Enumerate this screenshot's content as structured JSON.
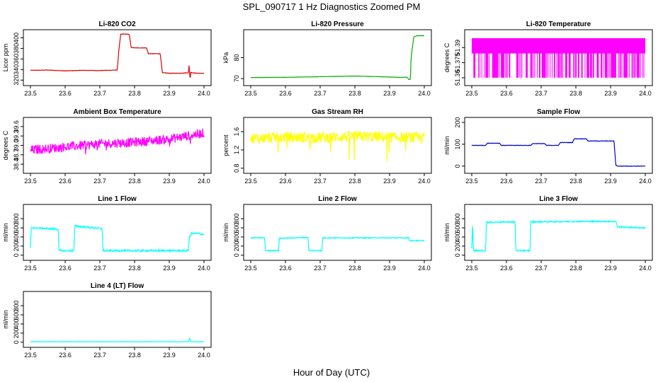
{
  "figure": {
    "title": "SPL_090717  1 Hz Diagnostics Zoomed PM",
    "xlabel": "Hour of Day (UTC)"
  },
  "chart_data": [
    {
      "type": "line",
      "title": "Li-820 CO2",
      "ylabel": "Licor ppm",
      "color": "#dd0000",
      "xlim": [
        23.5,
        24.0
      ],
      "ylim": [
        315,
        410
      ],
      "xticks": [
        "23.5",
        "23.6",
        "23.7",
        "23.8",
        "23.9",
        "24.0"
      ],
      "yticks": [
        {
          "v": 320,
          "label": "320"
        },
        {
          "v": 340,
          "label": "340"
        },
        {
          "v": 360,
          "label": "360"
        },
        {
          "v": 380,
          "label": "380"
        },
        {
          "v": 400,
          "label": "400"
        }
      ],
      "x": [
        23.5,
        23.55,
        23.6,
        23.65,
        23.7,
        23.745,
        23.75,
        23.754,
        23.76,
        23.78,
        23.785,
        23.79,
        23.8,
        23.82,
        23.834,
        23.84,
        23.86,
        23.874,
        23.88,
        23.9,
        23.93,
        23.955,
        23.957,
        23.96,
        23.962,
        23.965,
        23.98,
        24.0
      ],
      "values": [
        338.5,
        339,
        337.5,
        338.5,
        338,
        339,
        339,
        372,
        407,
        407,
        406,
        382,
        381,
        381,
        381,
        370,
        370,
        370,
        334,
        333,
        333,
        334,
        348,
        321,
        336,
        334,
        333,
        333
      ],
      "noise": 0.4
    },
    {
      "type": "line",
      "title": "Li-820 Pressure",
      "ylabel": "kPa",
      "color": "#00aa00",
      "xlim": [
        23.5,
        24.0
      ],
      "ylim": [
        68,
        92
      ],
      "xticks": [
        "23.5",
        "23.6",
        "23.7",
        "23.8",
        "23.9",
        "24.0"
      ],
      "yticks": [
        {
          "v": 70,
          "label": "70"
        },
        {
          "v": 80,
          "label": "80"
        }
      ],
      "x": [
        23.5,
        23.6,
        23.7,
        23.8,
        23.85,
        23.93,
        23.95,
        23.955,
        23.96,
        23.962,
        23.965,
        23.97,
        23.98,
        24.0
      ],
      "values": [
        70.5,
        70.6,
        70.9,
        71.2,
        71.0,
        70.6,
        70.7,
        69.6,
        69.6,
        80,
        84,
        90,
        90.5,
        90.5
      ],
      "noise": 0.05
    },
    {
      "type": "line",
      "title": "Li-820 Temperature",
      "ylabel": "degrees C",
      "color": "#ff00ff",
      "xlim": [
        23.5,
        24.0
      ],
      "ylim": [
        51.355,
        51.405
      ],
      "xticks": [
        "23.5",
        "23.6",
        "23.7",
        "23.8",
        "23.9",
        "24.0"
      ],
      "yticks": [
        {
          "v": 51.36,
          "label": "51.36"
        },
        {
          "v": 51.375,
          "label": "51.375"
        },
        {
          "v": 51.39,
          "label": "51.39"
        }
      ],
      "levels": [
        51.36,
        51.399
      ],
      "x": [
        23.5,
        24.0
      ],
      "values": [
        51.36,
        51.399
      ]
    },
    {
      "type": "line",
      "title": "Ambient Box Temperature",
      "ylabel": "degrees C",
      "color": "#ff00ff",
      "xlim": [
        23.5,
        24.0
      ],
      "ylim": [
        38.2,
        39.8
      ],
      "xticks": [
        "23.5",
        "23.6",
        "23.7",
        "23.8",
        "23.9",
        "24.0"
      ],
      "yticks": [
        {
          "v": 38.4,
          "label": "38.4"
        },
        {
          "v": 38.7,
          "label": "38.7"
        },
        {
          "v": 39.0,
          "label": "39.0"
        },
        {
          "v": 39.3,
          "label": "39.3"
        },
        {
          "v": 39.6,
          "label": "39.6"
        }
      ],
      "x": [
        23.5,
        23.6,
        23.7,
        23.8,
        23.9,
        23.95,
        24.0
      ],
      "values": [
        38.85,
        38.95,
        39.05,
        39.1,
        39.2,
        39.3,
        39.4
      ],
      "noise": 0.15
    },
    {
      "type": "line",
      "title": "Gas Stream RH",
      "ylabel": "percent",
      "color": "#ffff00",
      "xlim": [
        23.5,
        24.0
      ],
      "ylim": [
        0.75,
        1.85
      ],
      "xticks": [
        "23.5",
        "23.6",
        "23.7",
        "23.8",
        "23.9",
        "24.0"
      ],
      "yticks": [
        {
          "v": 0.8,
          "label": "0.8"
        },
        {
          "v": 1.2,
          "label": "1.2"
        },
        {
          "v": 1.6,
          "label": "1.6"
        }
      ],
      "x": [
        23.5,
        23.6,
        23.7,
        23.8,
        23.9,
        24.0
      ],
      "values": [
        1.45,
        1.48,
        1.47,
        1.5,
        1.48,
        1.47
      ],
      "noise": 0.12
    },
    {
      "type": "line",
      "title": "Sample Flow",
      "ylabel": "ml/min",
      "color": "#0000cc",
      "xlim": [
        23.5,
        24.0
      ],
      "ylim": [
        -20,
        210
      ],
      "xticks": [
        "23.5",
        "23.6",
        "23.7",
        "23.8",
        "23.9",
        "24.0"
      ],
      "yticks": [
        {
          "v": 0,
          "label": "0"
        },
        {
          "v": 100,
          "label": "100"
        },
        {
          "v": 200,
          "label": "200"
        }
      ],
      "x": [
        23.5,
        23.54,
        23.545,
        23.58,
        23.585,
        23.67,
        23.675,
        23.71,
        23.715,
        23.75,
        23.755,
        23.79,
        23.795,
        23.83,
        23.835,
        23.91,
        23.915,
        23.92,
        24.0
      ],
      "values": [
        95,
        95,
        105,
        105,
        95,
        95,
        103,
        103,
        95,
        95,
        108,
        108,
        125,
        125,
        115,
        115,
        5,
        0,
        0
      ],
      "noise": 1
    },
    {
      "type": "line",
      "title": "Line 1 Flow",
      "ylabel": "ml/min",
      "color": "#00ffff",
      "xlim": [
        23.5,
        24.0
      ],
      "ylim": [
        -50,
        1050
      ],
      "xticks": [
        "23.5",
        "23.6",
        "23.7",
        "23.8",
        "23.9",
        "24.0"
      ],
      "yticks": [
        {
          "v": 0,
          "label": "0"
        },
        {
          "v": 200,
          "label": "200"
        },
        {
          "v": 400,
          "label": "400"
        },
        {
          "v": 600,
          "label": "600"
        },
        {
          "v": 800,
          "label": "800"
        }
      ],
      "x": [
        23.5,
        23.502,
        23.505,
        23.58,
        23.582,
        23.625,
        23.628,
        23.707,
        23.709,
        23.955,
        23.958,
        23.965,
        24.0
      ],
      "values": [
        150,
        620,
        600,
        570,
        100,
        100,
        640,
        580,
        100,
        100,
        400,
        480,
        460
      ],
      "noise": 20
    },
    {
      "type": "line",
      "title": "Line 2 Flow",
      "ylabel": "ml/min",
      "color": "#00ffff",
      "xlim": [
        23.5,
        24.0
      ],
      "ylim": [
        -50,
        1050
      ],
      "xticks": [
        "23.5",
        "23.6",
        "23.7",
        "23.8",
        "23.9",
        "24.0"
      ],
      "yticks": [
        {
          "v": 0,
          "label": "0"
        },
        {
          "v": 200,
          "label": "200"
        },
        {
          "v": 400,
          "label": "400"
        },
        {
          "v": 600,
          "label": "600"
        },
        {
          "v": 800,
          "label": "800"
        }
      ],
      "x": [
        23.5,
        23.54,
        23.542,
        23.58,
        23.582,
        23.665,
        23.667,
        23.705,
        23.707,
        23.955,
        23.958,
        24.0
      ],
      "values": [
        380,
        380,
        100,
        100,
        370,
        390,
        100,
        100,
        380,
        380,
        320,
        320
      ],
      "noise": 10
    },
    {
      "type": "line",
      "title": "Line 3 Flow",
      "ylabel": "ml/min",
      "color": "#00ffff",
      "xlim": [
        23.5,
        24.0
      ],
      "ylim": [
        -50,
        1050
      ],
      "xticks": [
        "23.5",
        "23.6",
        "23.7",
        "23.8",
        "23.9",
        "24.0"
      ],
      "yticks": [
        {
          "v": 0,
          "label": "0"
        },
        {
          "v": 200,
          "label": "200"
        },
        {
          "v": 400,
          "label": "400"
        },
        {
          "v": 600,
          "label": "600"
        },
        {
          "v": 800,
          "label": "800"
        }
      ],
      "x": [
        23.5,
        23.502,
        23.505,
        23.54,
        23.542,
        23.625,
        23.627,
        23.668,
        23.67,
        23.8,
        23.915,
        23.92,
        24.0
      ],
      "values": [
        150,
        700,
        100,
        100,
        720,
        730,
        100,
        100,
        730,
        740,
        740,
        620,
        600
      ],
      "noise": 15
    },
    {
      "type": "line",
      "title": "Line 4 (LT) Flow",
      "ylabel": "ml/min",
      "color": "#00ffff",
      "xlim": [
        23.5,
        24.0
      ],
      "ylim": [
        -50,
        1050
      ],
      "xticks": [
        "23.5",
        "23.6",
        "23.7",
        "23.8",
        "23.9",
        "24.0"
      ],
      "yticks": [
        {
          "v": 0,
          "label": "0"
        },
        {
          "v": 200,
          "label": "200"
        },
        {
          "v": 400,
          "label": "400"
        },
        {
          "v": 600,
          "label": "600"
        },
        {
          "v": 800,
          "label": "800"
        }
      ],
      "x": [
        23.5,
        23.95,
        23.955,
        23.958,
        23.962,
        24.0
      ],
      "values": [
        10,
        10,
        10,
        90,
        10,
        10
      ],
      "noise": 2
    }
  ]
}
